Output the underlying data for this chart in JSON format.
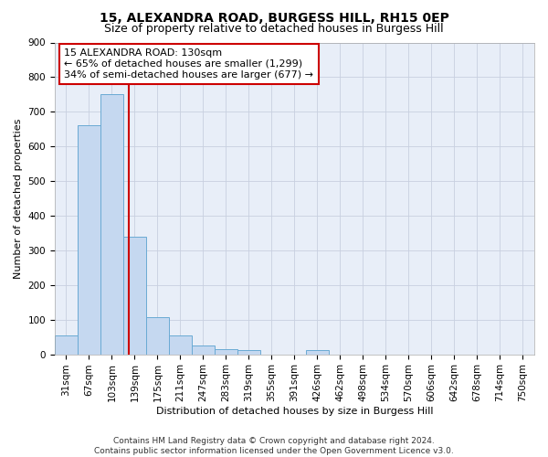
{
  "title": "15, ALEXANDRA ROAD, BURGESS HILL, RH15 0EP",
  "subtitle": "Size of property relative to detached houses in Burgess Hill",
  "xlabel": "Distribution of detached houses by size in Burgess Hill",
  "ylabel": "Number of detached properties",
  "bin_labels": [
    "31sqm",
    "67sqm",
    "103sqm",
    "139sqm",
    "175sqm",
    "211sqm",
    "247sqm",
    "283sqm",
    "319sqm",
    "355sqm",
    "391sqm",
    "426sqm",
    "462sqm",
    "498sqm",
    "534sqm",
    "570sqm",
    "606sqm",
    "642sqm",
    "678sqm",
    "714sqm",
    "750sqm"
  ],
  "bar_heights": [
    55,
    660,
    750,
    340,
    108,
    55,
    25,
    15,
    12,
    0,
    0,
    12,
    0,
    0,
    0,
    0,
    0,
    0,
    0,
    0,
    0
  ],
  "bar_color": "#c5d8f0",
  "bar_edge_color": "#6aaad4",
  "property_line_x": 2.75,
  "annotation_line1": "15 ALEXANDRA ROAD: 130sqm",
  "annotation_line2": "← 65% of detached houses are smaller (1,299)",
  "annotation_line3": "34% of semi-detached houses are larger (677) →",
  "annotation_box_color": "#ffffff",
  "annotation_box_edge": "#cc0000",
  "vline_color": "#cc0000",
  "ylim": [
    0,
    900
  ],
  "yticks": [
    0,
    100,
    200,
    300,
    400,
    500,
    600,
    700,
    800,
    900
  ],
  "footer_line1": "Contains HM Land Registry data © Crown copyright and database right 2024.",
  "footer_line2": "Contains public sector information licensed under the Open Government Licence v3.0.",
  "bg_color": "#e8eef8",
  "grid_color": "#c8d0e0",
  "title_fontsize": 10,
  "subtitle_fontsize": 9,
  "axis_label_fontsize": 8,
  "tick_fontsize": 7.5,
  "annotation_fontsize": 8,
  "footer_fontsize": 6.5
}
